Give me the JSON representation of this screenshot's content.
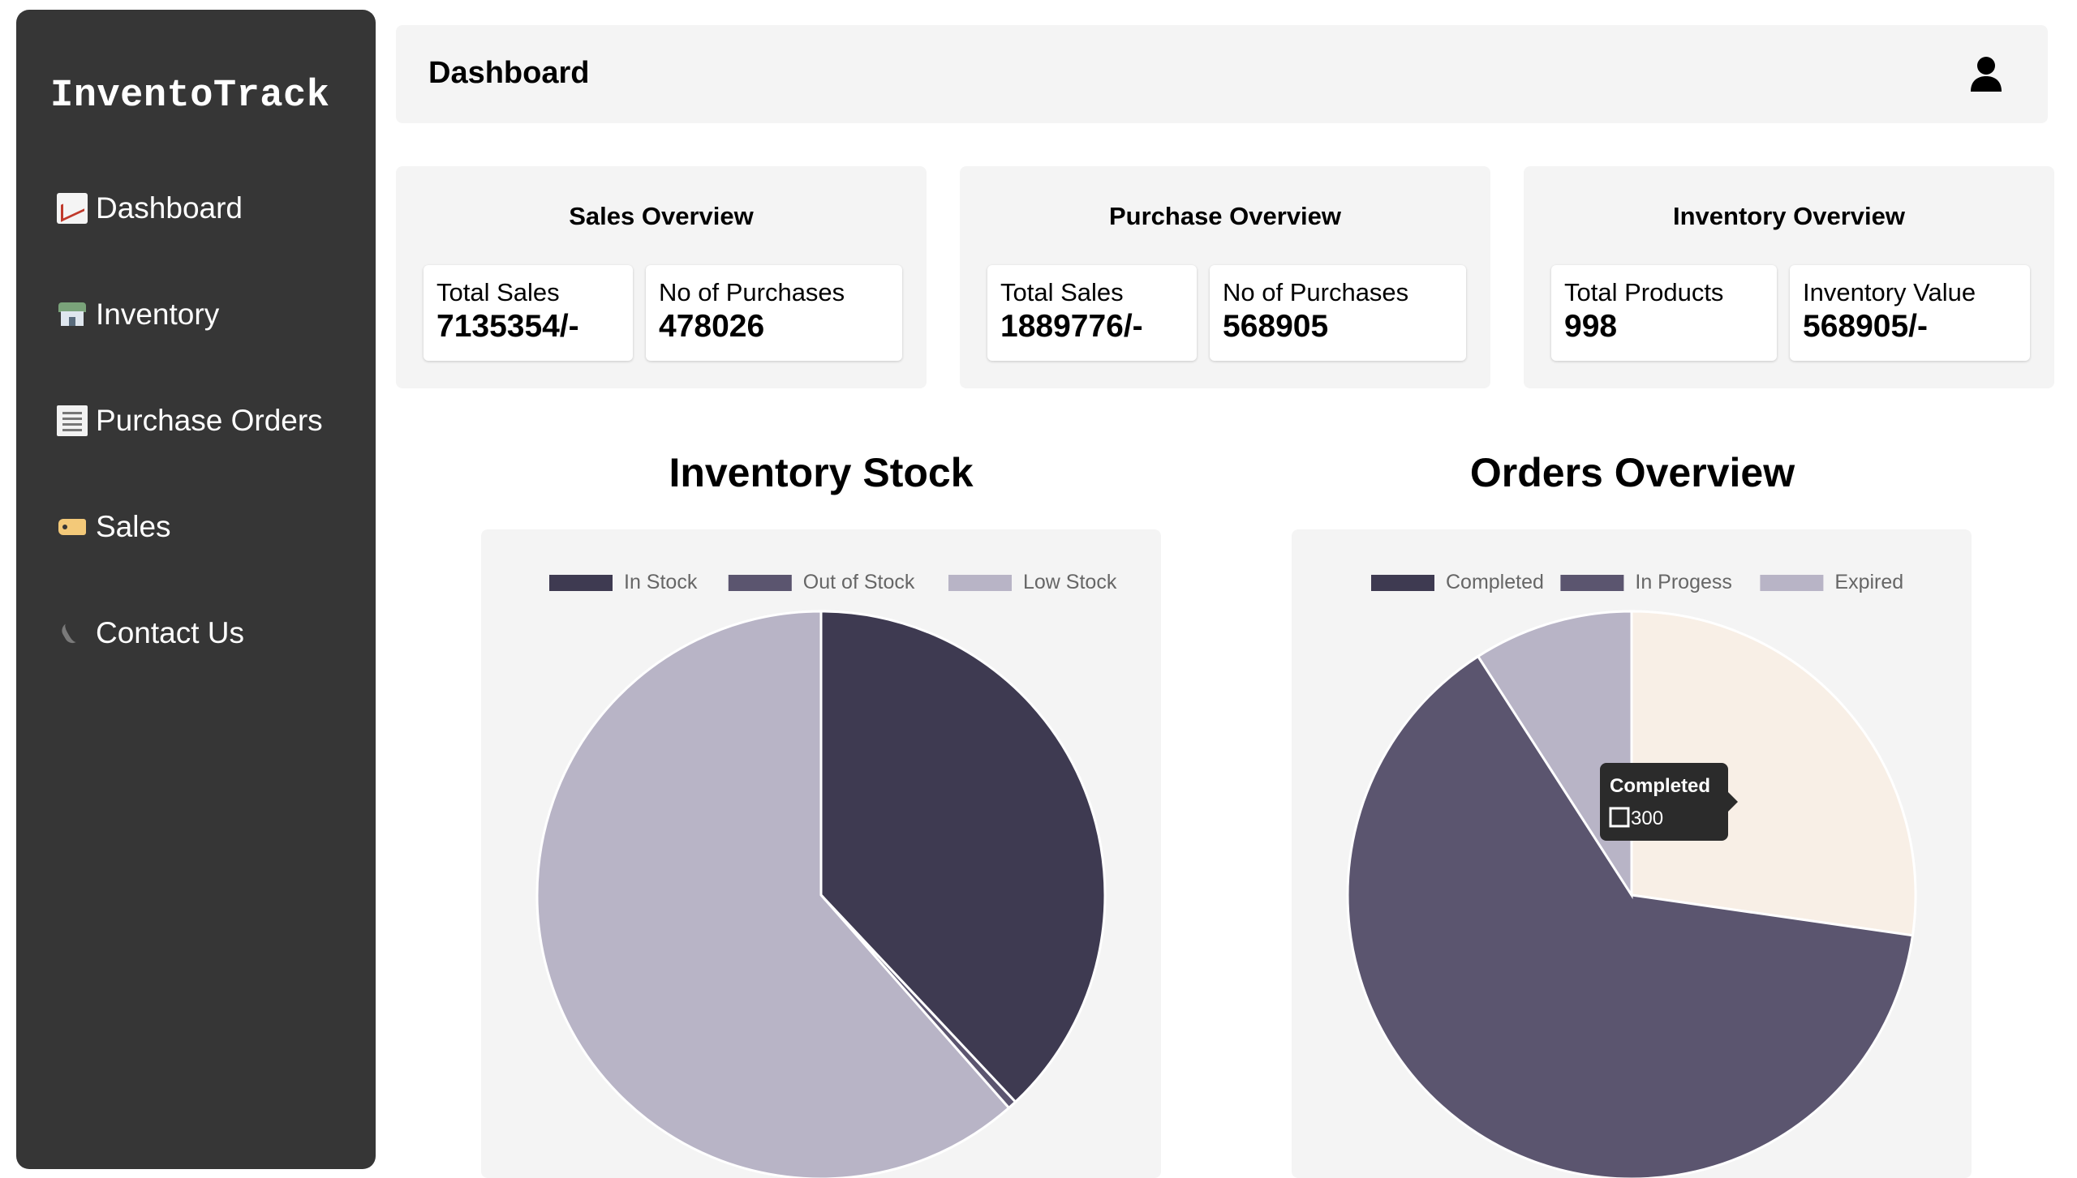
{
  "brand": "InventoTrack",
  "nav": [
    {
      "label": "Dashboard",
      "icon": "chart-increasing-icon"
    },
    {
      "label": "Inventory",
      "icon": "store-icon"
    },
    {
      "label": "Purchase Orders",
      "icon": "receipt-icon"
    },
    {
      "label": "Sales",
      "icon": "tag-icon"
    },
    {
      "label": "Contact Us",
      "icon": "phone-icon"
    }
  ],
  "header": {
    "title": "Dashboard",
    "user_icon": "user-icon"
  },
  "overview": [
    {
      "title": "Sales Overview",
      "stats": [
        {
          "label": "Total Sales",
          "value": "7135354/-"
        },
        {
          "label": "No of Purchases",
          "value": "478026"
        }
      ]
    },
    {
      "title": "Purchase Overview",
      "stats": [
        {
          "label": "Total Sales",
          "value": "1889776/-"
        },
        {
          "label": "No of Purchases",
          "value": "568905"
        }
      ]
    },
    {
      "title": "Inventory Overview",
      "stats": [
        {
          "label": "Total Products",
          "value": "998"
        },
        {
          "label": "Inventory Value",
          "value": "568905/-"
        }
      ]
    }
  ],
  "colors": {
    "dark": "#3e3a51",
    "mid": "#5b556f",
    "light": "#b8b4c6",
    "cream": "#f8efe6",
    "sidebar": "#363636",
    "card": "#f4f4f4"
  },
  "chart_data": [
    {
      "type": "pie",
      "title": "Inventory Stock",
      "legend_position": "top",
      "categories": [
        "In Stock",
        "Out of Stock",
        "Low Stock"
      ],
      "values": [
        38,
        0.5,
        61.5
      ],
      "colors": [
        "#3e3a51",
        "#5b556f",
        "#b8b4c6"
      ]
    },
    {
      "type": "pie",
      "title": "Orders Overview",
      "legend_position": "top",
      "categories": [
        "Completed",
        "In Progess",
        "Expired"
      ],
      "values": [
        300,
        700,
        100
      ],
      "colors": [
        "#f8efe6",
        "#5b556f",
        "#b8b4c6"
      ],
      "legend_colors": [
        "#3e3a51",
        "#5b556f",
        "#b8b4c6"
      ],
      "tooltip": {
        "title": "Completed",
        "value": "300"
      }
    }
  ]
}
